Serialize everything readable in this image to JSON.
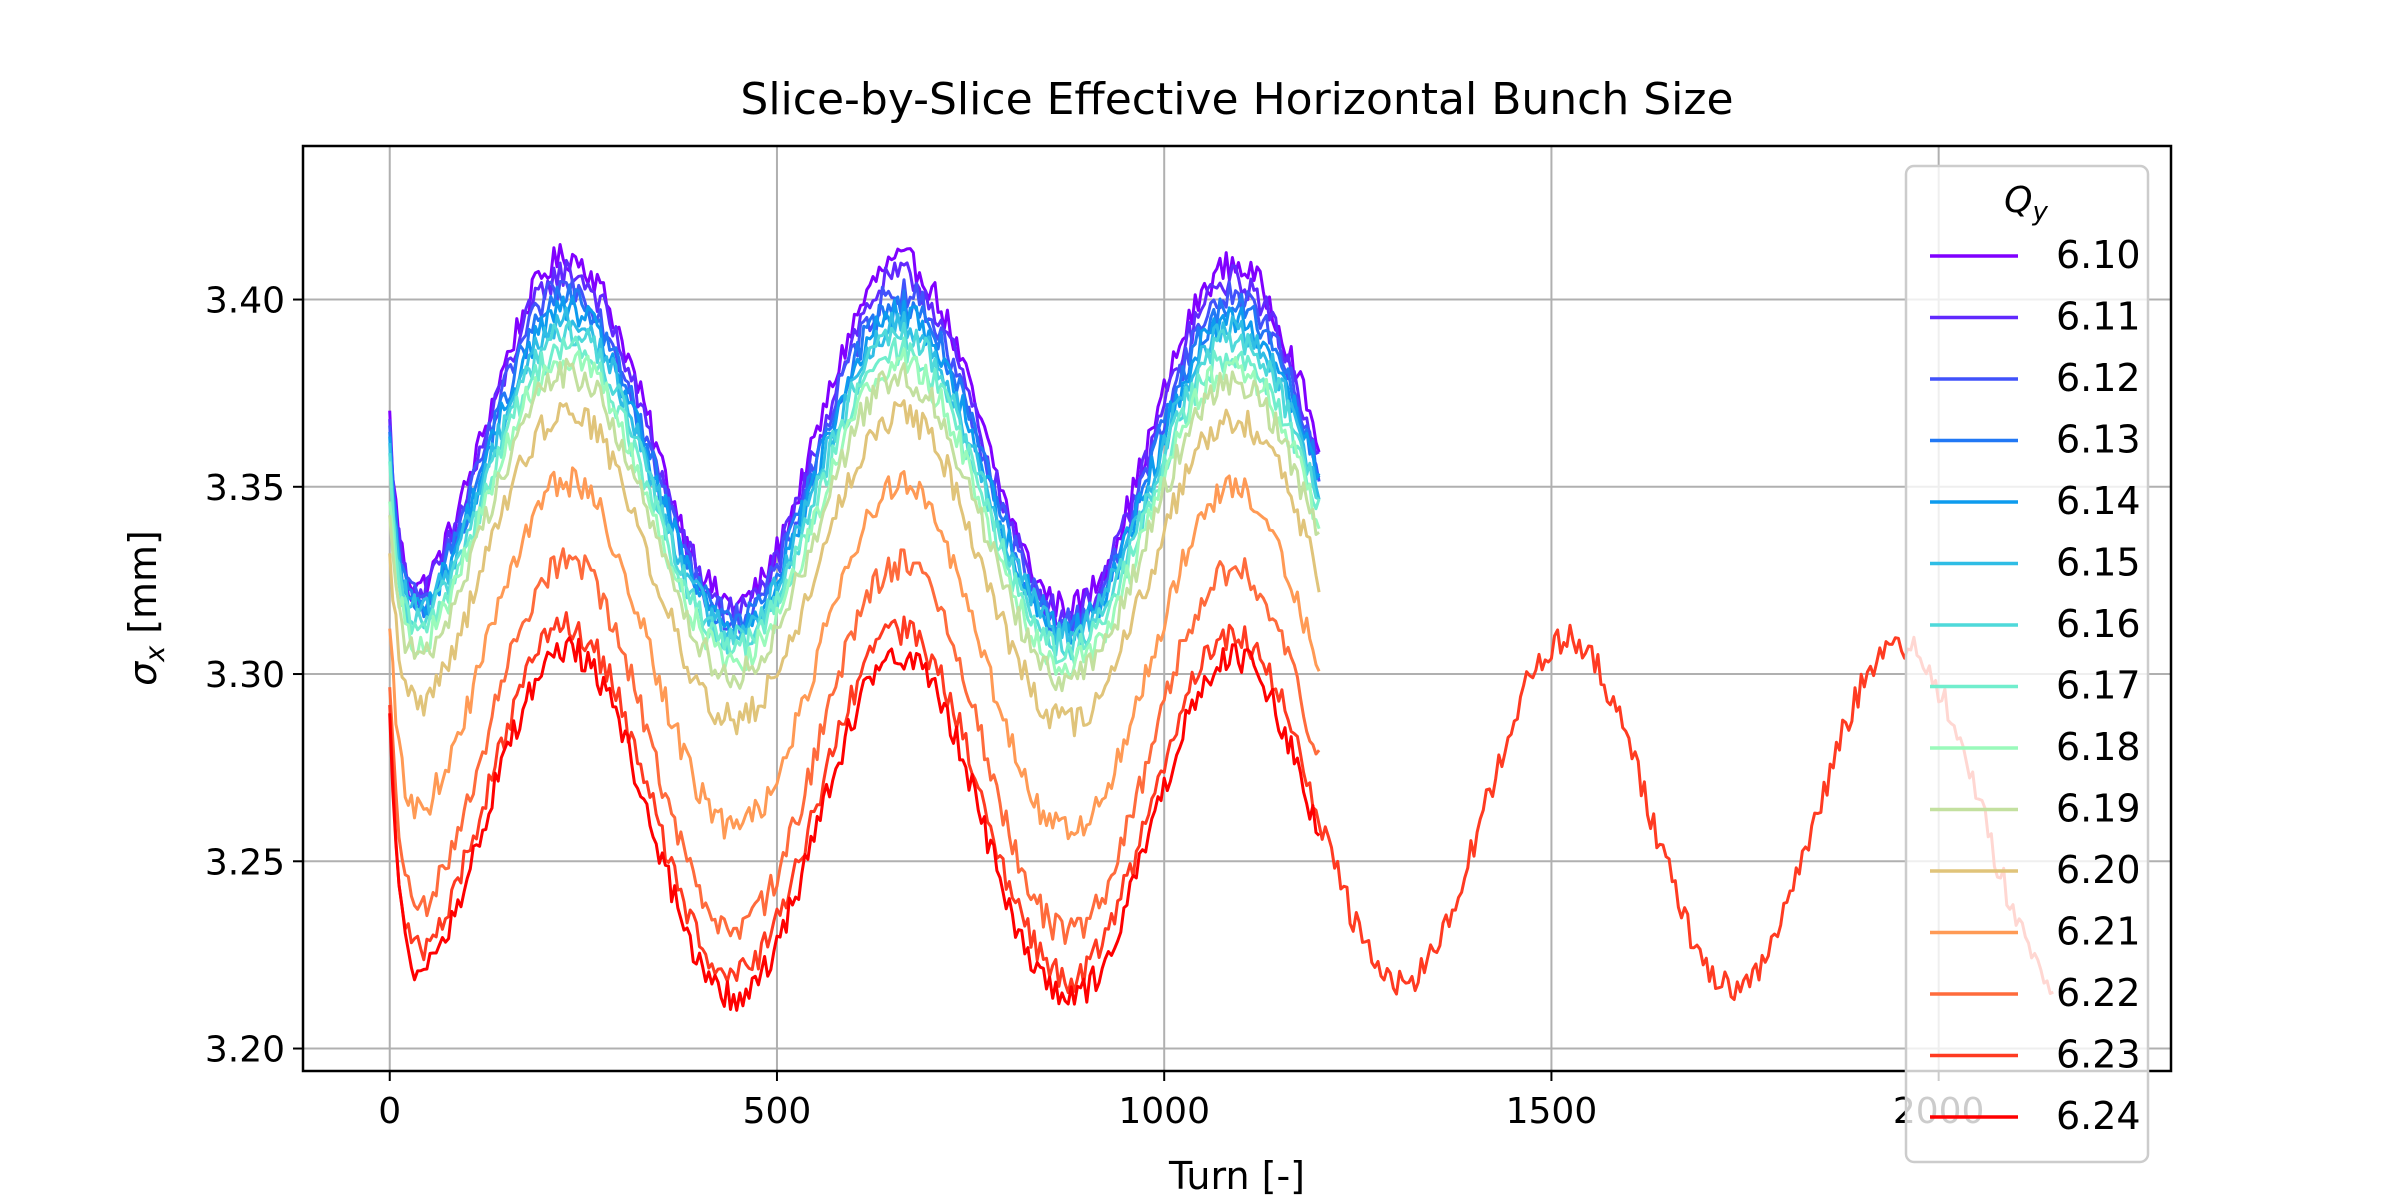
{
  "chart_data": {
    "type": "line",
    "title": "Slice-by-Slice Effective Horizontal Bunch Size",
    "xlabel": "Turn [-]",
    "ylabel_symbol": "σ",
    "ylabel_subscript": "x",
    "ylabel_unit": "[mm]",
    "xlim": [
      -112,
      2300
    ],
    "ylim": [
      3.194,
      3.441
    ],
    "xticks": [
      0,
      500,
      1000,
      1500,
      2000
    ],
    "xtick_labels": [
      "0",
      "500",
      "1000",
      "1500",
      "2000"
    ],
    "yticks": [
      3.2,
      3.25,
      3.3,
      3.35,
      3.4
    ],
    "ytick_labels": [
      "3.20",
      "3.25",
      "3.30",
      "3.35",
      "3.40"
    ],
    "grid": true,
    "legend_title_symbol": "Q",
    "legend_title_subscript": "y",
    "legend_position": "upper right",
    "series": [
      {
        "name": "6.10",
        "color": "#8000ff",
        "turns": 1200,
        "start": 3.415,
        "mean": 3.366,
        "amp": 0.046,
        "drift": -0.0025
      },
      {
        "name": "6.11",
        "color": "#6129fe",
        "turns": 1200,
        "start": 3.412,
        "mean": 3.363,
        "amp": 0.045,
        "drift": -0.0025
      },
      {
        "name": "6.12",
        "color": "#4152fb",
        "turns": 1200,
        "start": 3.41,
        "mean": 3.36,
        "amp": 0.044,
        "drift": -0.0025
      },
      {
        "name": "6.13",
        "color": "#2178f5",
        "turns": 1200,
        "start": 3.407,
        "mean": 3.358,
        "amp": 0.043,
        "drift": -0.0025
      },
      {
        "name": "6.14",
        "color": "#0d9bee",
        "turns": 1200,
        "start": 3.405,
        "mean": 3.356,
        "amp": 0.042,
        "drift": -0.0025
      },
      {
        "name": "6.15",
        "color": "#2fbde5",
        "turns": 1200,
        "start": 3.402,
        "mean": 3.354,
        "amp": 0.041,
        "drift": -0.0025
      },
      {
        "name": "6.16",
        "color": "#4fd9da",
        "turns": 1200,
        "start": 3.399,
        "mean": 3.351,
        "amp": 0.041,
        "drift": -0.0025
      },
      {
        "name": "6.17",
        "color": "#71eecd",
        "turns": 1200,
        "start": 3.396,
        "mean": 3.348,
        "amp": 0.04,
        "drift": -0.0025
      },
      {
        "name": "6.18",
        "color": "#9afabb",
        "turns": 1200,
        "start": 3.393,
        "mean": 3.345,
        "amp": 0.04,
        "drift": -0.0025
      },
      {
        "name": "6.19",
        "color": "#c3e09f",
        "turns": 1200,
        "start": 3.389,
        "mean": 3.341,
        "amp": 0.04,
        "drift": -0.0025
      },
      {
        "name": "6.20",
        "color": "#e0c47a",
        "turns": 1200,
        "start": 3.38,
        "mean": 3.33,
        "amp": 0.041,
        "drift": -0.0025
      },
      {
        "name": "6.21",
        "color": "#ff9a55",
        "turns": 1200,
        "start": 3.368,
        "mean": 3.306,
        "amp": 0.046,
        "drift": -0.0025
      },
      {
        "name": "6.22",
        "color": "#ff6b3c",
        "turns": 1200,
        "start": 3.363,
        "mean": 3.282,
        "amp": 0.049,
        "drift": -0.0025
      },
      {
        "name": "6.23",
        "color": "#ff3b22",
        "turns": 2150,
        "start": 3.365,
        "mean": 3.267,
        "amp": 0.046,
        "drift": -0.0025
      },
      {
        "name": "6.24",
        "color": "#ff0000",
        "turns": 1200,
        "start": 3.366,
        "mean": 3.261,
        "amp": 0.046,
        "drift": -0.0025
      }
    ]
  }
}
